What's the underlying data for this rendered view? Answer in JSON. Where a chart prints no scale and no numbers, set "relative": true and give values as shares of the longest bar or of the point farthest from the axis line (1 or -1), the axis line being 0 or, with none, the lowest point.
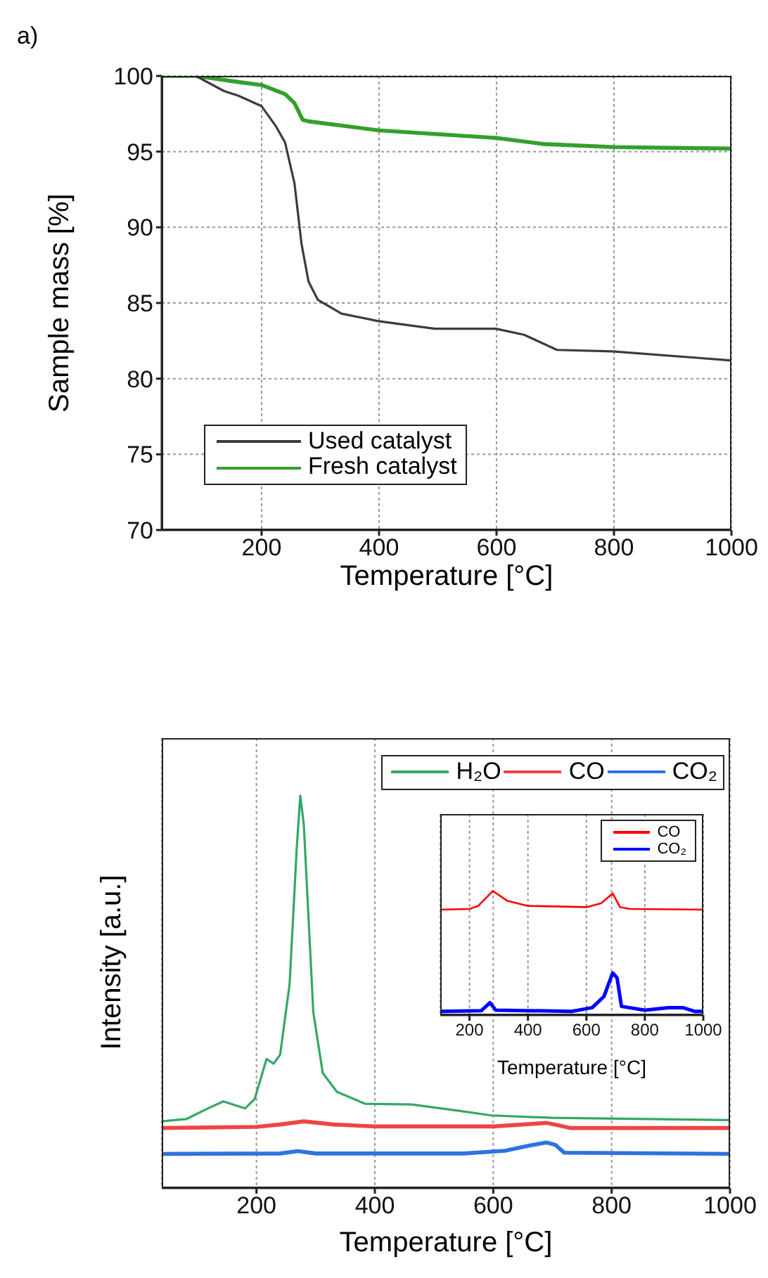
{
  "chart_data": [
    {
      "type": "line",
      "annotations": [
        "a)"
      ],
      "xlabel": "Temperature [°C]",
      "ylabel": "Sample mass [%]",
      "xlim": [
        30,
        1000
      ],
      "ylim": [
        70,
        100
      ],
      "xticks": [
        200,
        400,
        600,
        800,
        1000
      ],
      "yticks": [
        70,
        75,
        80,
        85,
        90,
        95,
        100
      ],
      "grid": true,
      "legend": "bottom left",
      "series": [
        {
          "name": "Used catalyst",
          "color": "#3c3c3c",
          "x": [
            30,
            88,
            136,
            160,
            200,
            224,
            240,
            256,
            268,
            280,
            296,
            336,
            399,
            495,
            599,
            647,
            703,
            798,
            934,
            1000
          ],
          "values": [
            100,
            100,
            99.0,
            98.7,
            98.0,
            96.7,
            95.6,
            92.9,
            88.9,
            86.4,
            85.2,
            84.3,
            83.8,
            83.3,
            83.3,
            82.9,
            81.9,
            81.8,
            81.4,
            81.2
          ]
        },
        {
          "name": "Fresh catalyst",
          "color": "#34a02c",
          "x": [
            30,
            88,
            160,
            200,
            240,
            256,
            270,
            280,
            400,
            600,
            680,
            800,
            1000
          ],
          "values": [
            100,
            100,
            99.6,
            99.4,
            98.8,
            98.2,
            97.1,
            97.0,
            96.4,
            95.9,
            95.5,
            95.3,
            95.2
          ]
        }
      ]
    },
    {
      "type": "line",
      "relative": true,
      "xlabel": "Temperature [°C]",
      "ylabel": "Intensity [a.u.]",
      "xlim": [
        40,
        1000
      ],
      "xticks": [
        200,
        400,
        600,
        800,
        1000
      ],
      "grid": "x",
      "legend": "top right",
      "series": [
        {
          "name": "H₂O",
          "color": "#33a866",
          "x": [
            40,
            82,
            114,
            144,
            181,
            197,
            217,
            229,
            240,
            256,
            268,
            274,
            280,
            296,
            312,
            336,
            383,
            462,
            542,
            597,
            700,
            1000
          ],
          "values": [
            0.17,
            0.176,
            0.2,
            0.221,
            0.203,
            0.227,
            0.329,
            0.317,
            0.34,
            0.52,
            0.866,
            1,
            0.926,
            0.448,
            0.293,
            0.245,
            0.215,
            0.213,
            0.197,
            0.185,
            0.179,
            0.173
          ]
        },
        {
          "name": "CO",
          "color": "#f04444",
          "x": [
            40,
            200,
            240,
            280,
            330,
            400,
            600,
            650,
            690,
            710,
            730,
            1000
          ],
          "values": [
            0.153,
            0.156,
            0.162,
            0.17,
            0.162,
            0.157,
            0.157,
            0.162,
            0.166,
            0.16,
            0.153,
            0.153
          ]
        },
        {
          "name": "CO₂",
          "color": "#2f72e0",
          "x": [
            40,
            240,
            270,
            300,
            550,
            620,
            660,
            690,
            705,
            720,
            1000
          ],
          "values": [
            0.087,
            0.088,
            0.094,
            0.088,
            0.088,
            0.095,
            0.108,
            0.116,
            0.11,
            0.09,
            0.087
          ]
        }
      ]
    },
    {
      "type": "line",
      "relative": true,
      "xlabel": "Temperature [°C]",
      "xlim": [
        100,
        1000
      ],
      "xticks": [
        200,
        400,
        600,
        800,
        1000
      ],
      "grid": "x",
      "legend": "top right",
      "series": [
        {
          "name": "CO",
          "color": "#ff0000",
          "x": [
            100,
            200,
            230,
            280,
            330,
            400,
            600,
            650,
            690,
            715,
            750,
            1000
          ],
          "values": [
            0.85,
            0.855,
            0.88,
            1,
            0.92,
            0.88,
            0.87,
            0.9,
            0.98,
            0.87,
            0.855,
            0.85
          ]
        },
        {
          "name": "CO₂",
          "color": "#0000ff",
          "x": [
            100,
            240,
            270,
            290,
            550,
            620,
            660,
            690,
            705,
            720,
            800,
            880,
            930,
            970,
            1000
          ],
          "values": [
            0.03,
            0.035,
            0.1,
            0.04,
            0.03,
            0.06,
            0.15,
            0.34,
            0.3,
            0.07,
            0.04,
            0.06,
            0.06,
            0.03,
            0.03
          ]
        }
      ]
    }
  ]
}
